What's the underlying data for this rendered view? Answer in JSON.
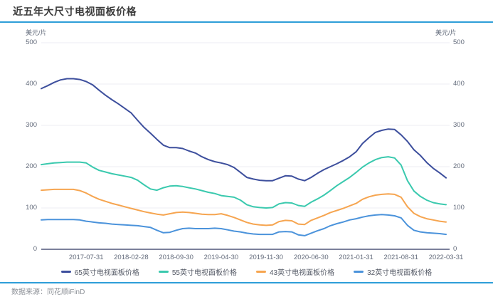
{
  "header": {
    "title": "近五年大尺寸电视面板价格"
  },
  "footer": {
    "source": "数据来源：同花顺iFinD"
  },
  "colors": {
    "accent_blue": "#2e9ed8",
    "grid": "#ededf3",
    "axis": "#7b809b",
    "tick_text": "#646c7c"
  },
  "chart_data": {
    "type": "line",
    "title": "近五年大尺寸电视面板价格",
    "y_axis": {
      "unit": "美元/片",
      "min": 0,
      "max": 500,
      "ticks": [
        500,
        400,
        300,
        200,
        100,
        0
      ],
      "dual": true
    },
    "x_axis": {
      "tick_labels": [
        "2017-07-31",
        "2018-02-28",
        "2018-09-30",
        "2019-04-30",
        "2019-11-30",
        "2020-06-30",
        "2021-01-31",
        "2021-08-31",
        "2022-03-31"
      ],
      "tick_indices": [
        7,
        14,
        21,
        28,
        35,
        42,
        49,
        56,
        63
      ]
    },
    "grid": true,
    "legend_position": "bottom",
    "months": [
      "2016-12",
      "2017-01",
      "2017-02",
      "2017-03",
      "2017-04",
      "2017-05",
      "2017-06",
      "2017-07",
      "2017-08",
      "2017-09",
      "2017-10",
      "2017-11",
      "2017-12",
      "2018-01",
      "2018-02",
      "2018-03",
      "2018-04",
      "2018-05",
      "2018-06",
      "2018-07",
      "2018-08",
      "2018-09",
      "2018-10",
      "2018-11",
      "2018-12",
      "2019-01",
      "2019-02",
      "2019-03",
      "2019-04",
      "2019-05",
      "2019-06",
      "2019-07",
      "2019-08",
      "2019-09",
      "2019-10",
      "2019-11",
      "2019-12",
      "2020-01",
      "2020-02",
      "2020-03",
      "2020-04",
      "2020-05",
      "2020-06",
      "2020-07",
      "2020-08",
      "2020-09",
      "2020-10",
      "2020-11",
      "2020-12",
      "2021-01",
      "2021-02",
      "2021-03",
      "2021-04",
      "2021-05",
      "2021-06",
      "2021-07",
      "2021-08",
      "2021-09",
      "2021-10",
      "2021-11",
      "2021-12",
      "2022-01",
      "2022-02",
      "2022-03"
    ],
    "series": [
      {
        "id": "65-inch",
        "name": "65英寸电视面板价格",
        "color": "#3d4f9d",
        "values": [
          389,
          396,
          404,
          410,
          413,
          413,
          411,
          406,
          398,
          385,
          373,
          362,
          352,
          341,
          330,
          312,
          295,
          281,
          266,
          252,
          246,
          246,
          244,
          238,
          233,
          224,
          217,
          212,
          209,
          205,
          198,
          186,
          174,
          170,
          167,
          166,
          166,
          172,
          178,
          177,
          170,
          166,
          174,
          184,
          193,
          200,
          207,
          215,
          224,
          236,
          256,
          270,
          283,
          288,
          291,
          290,
          277,
          261,
          241,
          227,
          210,
          196,
          185,
          173
        ]
      },
      {
        "id": "55-inch",
        "name": "55英寸电视面板价格",
        "color": "#3ac9ae",
        "values": [
          205,
          207,
          209,
          210,
          211,
          211,
          211,
          209,
          199,
          191,
          187,
          183,
          180,
          177,
          174,
          167,
          156,
          146,
          143,
          149,
          153,
          154,
          152,
          149,
          146,
          142,
          138,
          135,
          130,
          128,
          126,
          119,
          108,
          103,
          101,
          100,
          101,
          110,
          113,
          112,
          106,
          104,
          114,
          122,
          131,
          142,
          154,
          164,
          174,
          186,
          199,
          209,
          217,
          222,
          224,
          221,
          204,
          166,
          141,
          128,
          119,
          113,
          110,
          108
        ]
      },
      {
        "id": "43-inch",
        "name": "43英寸电视面板价格",
        "color": "#f6a550",
        "values": [
          143,
          144,
          145,
          145,
          145,
          145,
          142,
          136,
          128,
          121,
          116,
          111,
          107,
          103,
          99,
          95,
          91,
          88,
          85,
          83,
          86,
          89,
          90,
          89,
          87,
          85,
          84,
          84,
          86,
          82,
          77,
          71,
          65,
          61,
          59,
          58,
          59,
          67,
          70,
          69,
          61,
          60,
          70,
          76,
          82,
          89,
          94,
          99,
          105,
          111,
          121,
          127,
          131,
          133,
          134,
          133,
          126,
          103,
          87,
          79,
          74,
          71,
          68,
          66
        ]
      },
      {
        "id": "32-inch",
        "name": "32英寸电视面板价格",
        "color": "#4b93db",
        "values": [
          71,
          72,
          72,
          72,
          72,
          72,
          71,
          68,
          66,
          64,
          63,
          61,
          60,
          59,
          58,
          57,
          55,
          53,
          46,
          40,
          41,
          46,
          50,
          51,
          50,
          50,
          50,
          51,
          50,
          47,
          44,
          42,
          39,
          37,
          36,
          36,
          36,
          42,
          43,
          42,
          35,
          33,
          39,
          45,
          50,
          57,
          62,
          66,
          71,
          74,
          78,
          81,
          83,
          84,
          83,
          81,
          76,
          58,
          46,
          42,
          40,
          39,
          38,
          36
        ]
      }
    ]
  }
}
